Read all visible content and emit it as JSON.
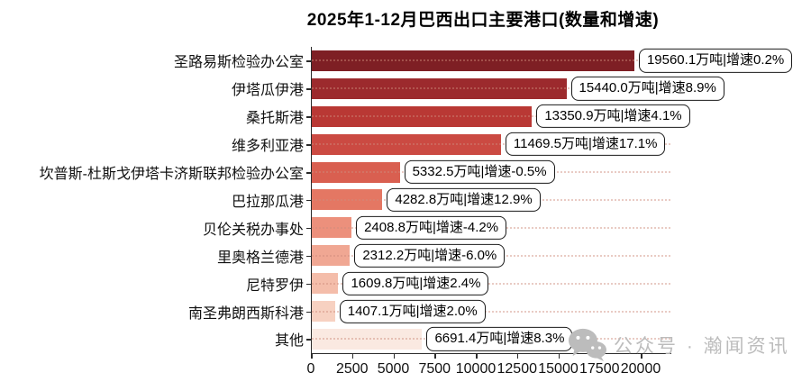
{
  "title": "2025年1-12月巴西出口主要港口(数量和增速)",
  "watermark": {
    "icon": "wechat-icon",
    "text": "公众号 · 瀚闻资讯"
  },
  "chart_data": {
    "type": "bar",
    "orientation": "horizontal",
    "title": "2025年1-12月巴西出口主要港口(数量和增速)",
    "categories": [
      "圣路易斯检验办公室",
      "伊塔瓜伊港",
      "桑托斯港",
      "维多利亚港",
      "坎普斯-杜斯戈伊塔卡济斯联邦检验办公室",
      "巴拉那瓜港",
      "贝伦关税办事处",
      "里奥格兰德港",
      "尼特罗伊",
      "南圣弗朗西斯科港",
      "其他"
    ],
    "series": [
      {
        "name": "数量(万吨)",
        "values": [
          19560.1,
          15440.0,
          13350.9,
          11469.5,
          5332.5,
          4282.8,
          2408.8,
          2312.2,
          1609.8,
          1407.1,
          6691.4
        ]
      },
      {
        "name": "增速(%)",
        "values": [
          0.2,
          8.9,
          4.1,
          17.1,
          -0.5,
          12.9,
          -4.2,
          -6.0,
          2.4,
          2.0,
          8.3
        ]
      }
    ],
    "bar_labels": [
      "19560.1万吨|增速0.2%",
      "15440.0万吨|增速8.9%",
      "13350.9万吨|增速4.1%",
      "11469.5万吨|增速17.1%",
      "5332.5万吨|增速-0.5%",
      "4282.8万吨|增速12.9%",
      "2408.8万吨|增速-4.2%",
      "2312.2万吨|增速-6.0%",
      "1609.8万吨|增速2.4%",
      "1407.1万吨|增速2.0%",
      "6691.4万吨|增速8.3%"
    ],
    "bar_colors": [
      "#7E1F24",
      "#9C2A2D",
      "#B93834",
      "#CB4A42",
      "#D95F50",
      "#E47763",
      "#EC907C",
      "#F0A793",
      "#F4BDAA",
      "#F7D1C1",
      "#FAE9E1"
    ],
    "x_ticks": [
      0,
      2500,
      5000,
      7500,
      10000,
      12500,
      15000,
      17500,
      20000
    ],
    "xlim": [
      0,
      20000
    ],
    "xlabel": "",
    "ylabel": "",
    "grid": "dotted-horizontal-per-category",
    "legend": "none",
    "axis_color": "#2b2b2b"
  }
}
